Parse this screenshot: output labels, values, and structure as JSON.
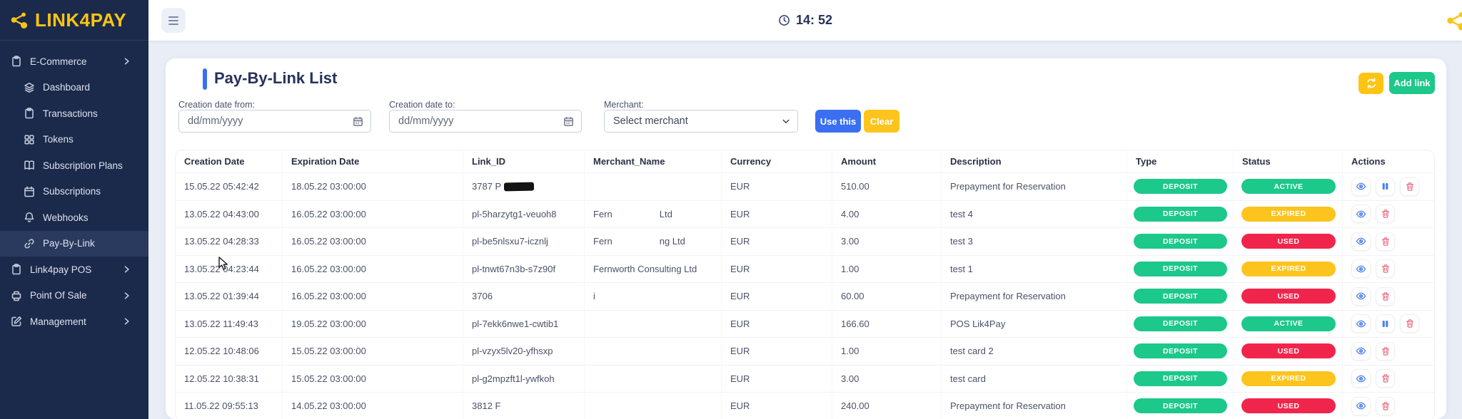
{
  "brand": {
    "name": "LINK4PAY",
    "logo_color": "#fdc413"
  },
  "topbar": {
    "time": "14: 52"
  },
  "sidebar": {
    "items": [
      {
        "label": "E-Commerce",
        "icon": "clipboard",
        "level": 0,
        "chevron": true,
        "active": false
      },
      {
        "label": "Dashboard",
        "icon": "layers",
        "level": 1,
        "chevron": false,
        "active": false
      },
      {
        "label": "Transactions",
        "icon": "clipboard",
        "level": 1,
        "chevron": false,
        "active": false
      },
      {
        "label": "Tokens",
        "icon": "grid",
        "level": 1,
        "chevron": false,
        "active": false
      },
      {
        "label": "Subscription Plans",
        "icon": "book",
        "level": 1,
        "chevron": false,
        "active": false
      },
      {
        "label": "Subscriptions",
        "icon": "calendar",
        "level": 1,
        "chevron": false,
        "active": false
      },
      {
        "label": "Webhooks",
        "icon": "bell",
        "level": 1,
        "chevron": false,
        "active": false
      },
      {
        "label": "Pay-By-Link",
        "icon": "link",
        "level": 1,
        "chevron": false,
        "active": true
      },
      {
        "label": "Link4pay POS",
        "icon": "clipboard",
        "level": 0,
        "chevron": true,
        "active": false
      },
      {
        "label": "Point Of Sale",
        "icon": "printer",
        "level": 0,
        "chevron": true,
        "active": false
      },
      {
        "label": "Management",
        "icon": "edit",
        "level": 0,
        "chevron": true,
        "active": false
      }
    ]
  },
  "page": {
    "title": "Pay-By-Link List",
    "add_link_label": "Add link"
  },
  "filters": {
    "creation_from_label": "Creation date from:",
    "creation_to_label": "Creation date to:",
    "date_placeholder": "dd/mm/yyyy",
    "merchant_label": "Merchant:",
    "merchant_value": "Select merchant",
    "use_this_label": "Use this",
    "clear_label": "Clear"
  },
  "colors": {
    "accent_blue": "#3a6ff1",
    "accent_yellow": "#fdc413",
    "accent_green": "#1cc88a",
    "type_badge": "#1cc88a",
    "status": {
      "ACTIVE": "#1cc88a",
      "EXPIRED": "#fcc41d",
      "USED": "#f1254c"
    }
  },
  "table": {
    "columns": [
      "Creation Date",
      "Expiration Date",
      "Link_ID",
      "Merchant_Name",
      "Currency",
      "Amount",
      "Description",
      "Type",
      "Status",
      "Actions"
    ],
    "rows": [
      {
        "creation": "15.05.22 05:42:42",
        "expiration": "18.05.22 03:00:00",
        "link_id": "3787 P",
        "redacted": true,
        "merchant_prefix": "",
        "merchant_suffix": "",
        "currency": "EUR",
        "amount": "510.00",
        "description": "Prepayment for Reservation",
        "type": "DEPOSIT",
        "status": "ACTIVE",
        "actions": [
          "view",
          "pause",
          "delete"
        ]
      },
      {
        "creation": "13.05.22 04:43:00",
        "expiration": "16.05.22 03:00:00",
        "link_id": "pl-5harzytg1-veuoh8",
        "redacted": false,
        "merchant_prefix": "Fern",
        "merchant_suffix": "Ltd",
        "currency": "EUR",
        "amount": "4.00",
        "description": "test 4",
        "type": "DEPOSIT",
        "status": "EXPIRED",
        "actions": [
          "view",
          "delete"
        ]
      },
      {
        "creation": "13.05.22 04:28:33",
        "expiration": "16.05.22 03:00:00",
        "link_id": "pl-be5nlsxu7-icznlj",
        "redacted": false,
        "merchant_prefix": "Fern",
        "merchant_suffix": "ng Ltd",
        "currency": "EUR",
        "amount": "3.00",
        "description": "test 3",
        "type": "DEPOSIT",
        "status": "USED",
        "actions": [
          "view",
          "delete"
        ]
      },
      {
        "creation": "13.05.22 04:23:44",
        "expiration": "16.05.22 03:00:00",
        "link_id": "pl-tnwt67n3b-s7z90f",
        "redacted": false,
        "merchant_prefix": "Fernworth Consulting Ltd",
        "merchant_suffix": "",
        "currency": "EUR",
        "amount": "1.00",
        "description": "test 1",
        "type": "DEPOSIT",
        "status": "EXPIRED",
        "actions": [
          "view",
          "delete"
        ]
      },
      {
        "creation": "13.05.22 01:39:44",
        "expiration": "16.05.22 03:00:00",
        "link_id": "3706",
        "redacted": false,
        "merchant_prefix": "i",
        "merchant_suffix": "",
        "currency": "EUR",
        "amount": "60.00",
        "description": "Prepayment for Reservation",
        "type": "DEPOSIT",
        "status": "USED",
        "actions": [
          "view",
          "delete"
        ]
      },
      {
        "creation": "13.05.22 11:49:43",
        "expiration": "19.05.22 03:00:00",
        "link_id": "pl-7ekk6nwe1-cwtib1",
        "redacted": false,
        "merchant_prefix": "",
        "merchant_suffix": "",
        "currency": "EUR",
        "amount": "166.60",
        "description": "POS Lik4Pay",
        "type": "DEPOSIT",
        "status": "ACTIVE",
        "actions": [
          "view",
          "pause",
          "delete"
        ]
      },
      {
        "creation": "12.05.22 10:48:06",
        "expiration": "15.05.22 03:00:00",
        "link_id": "pl-vzyx5lv20-yfhsxp",
        "redacted": false,
        "merchant_prefix": "",
        "merchant_suffix": "",
        "currency": "EUR",
        "amount": "1.00",
        "description": "test card 2",
        "type": "DEPOSIT",
        "status": "USED",
        "actions": [
          "view",
          "delete"
        ]
      },
      {
        "creation": "12.05.22 10:38:31",
        "expiration": "15.05.22 03:00:00",
        "link_id": "pl-g2mpzft1l-ywfkoh",
        "redacted": false,
        "merchant_prefix": "",
        "merchant_suffix": "",
        "currency": "EUR",
        "amount": "3.00",
        "description": "test card",
        "type": "DEPOSIT",
        "status": "EXPIRED",
        "actions": [
          "view",
          "delete"
        ]
      },
      {
        "creation": "11.05.22 09:55:13",
        "expiration": "14.05.22 03:00:00",
        "link_id": "3812 F",
        "redacted": false,
        "merchant_prefix": "",
        "merchant_suffix": "",
        "currency": "EUR",
        "amount": "240.00",
        "description": "Prepayment for Reservation",
        "type": "DEPOSIT",
        "status": "USED",
        "actions": [
          "view",
          "delete"
        ]
      }
    ]
  }
}
